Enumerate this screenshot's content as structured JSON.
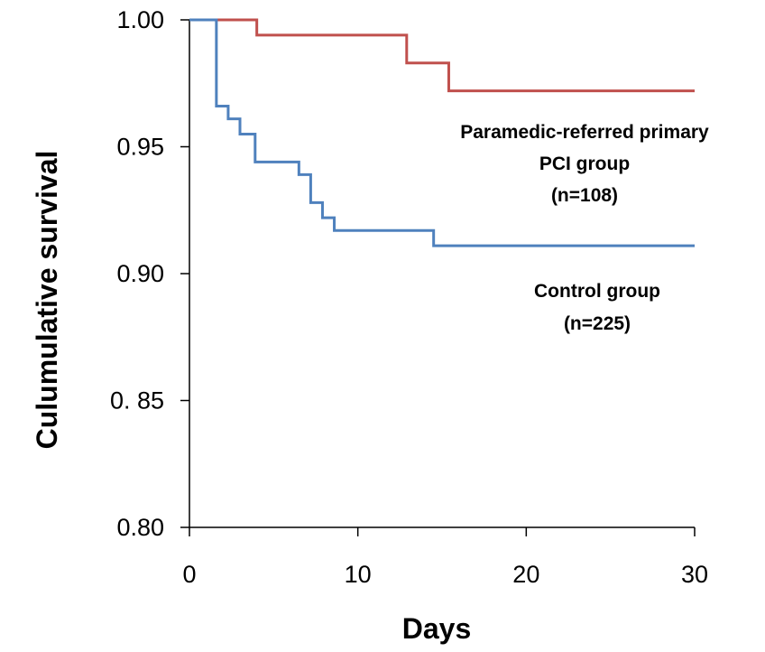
{
  "chart_data": {
    "type": "line",
    "xlabel": "Days",
    "ylabel": "Culumulative survival",
    "xlim": [
      0,
      30
    ],
    "ylim": [
      0.8,
      1.0
    ],
    "x_ticks": [
      0,
      10,
      20,
      30
    ],
    "x_tick_labels": [
      "0",
      "10",
      "20",
      "30"
    ],
    "y_ticks": [
      0.8,
      0.85,
      0.9,
      0.95,
      1.0
    ],
    "y_tick_labels": [
      "0.80",
      "0. 85",
      "0.90",
      "0.95",
      "1.00"
    ],
    "grid": false,
    "step": true,
    "series": [
      {
        "color": "#c0504d",
        "x": [
          0,
          4.0,
          12.9,
          15.4,
          30
        ],
        "y": [
          1.0,
          0.994,
          0.983,
          0.972,
          0.972
        ]
      },
      {
        "color": "#4f81bd",
        "x": [
          0,
          1.6,
          2.3,
          3.0,
          3.9,
          6.5,
          7.2,
          7.9,
          8.6,
          14.5,
          30
        ],
        "y": [
          1.0,
          0.966,
          0.961,
          0.955,
          0.944,
          0.939,
          0.928,
          0.922,
          0.917,
          0.911,
          0.911
        ]
      }
    ],
    "annotations": [
      {
        "lines": [
          "Paramedic-referred primary",
          "PCI group",
          "(n=108)"
        ],
        "series_index": 0
      },
      {
        "lines": [
          "Control group",
          "(n=225)"
        ],
        "series_index": 1
      }
    ]
  }
}
